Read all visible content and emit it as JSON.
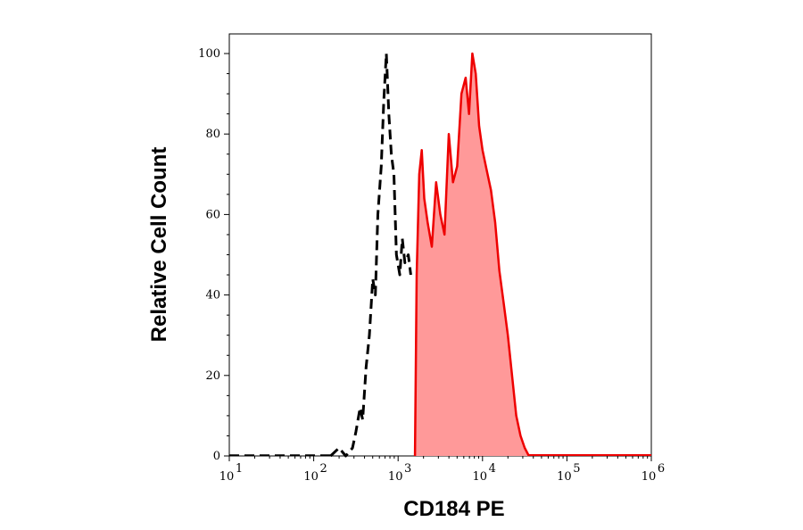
{
  "chart_data": {
    "type": "area",
    "xlabel": "CD184 PE",
    "ylabel": "Relative Cell Count",
    "xscale": "log",
    "xlim": [
      1,
      6
    ],
    "ylim": [
      0,
      100
    ],
    "x_ticks": [
      {
        "exp": 1,
        "base": "10",
        "sup": "1"
      },
      {
        "exp": 2,
        "base": "10",
        "sup": "2"
      },
      {
        "exp": 3,
        "base": "10",
        "sup": "3"
      },
      {
        "exp": 4,
        "base": "10",
        "sup": "4"
      },
      {
        "exp": 5,
        "base": "10",
        "sup": "5"
      },
      {
        "exp": 6,
        "base": "10",
        "sup": "6"
      }
    ],
    "y_ticks": [
      "0",
      "20",
      "40",
      "60",
      "80",
      "100"
    ],
    "grid": false,
    "series": [
      {
        "style": "dashed",
        "color": "#000000",
        "fill": "none",
        "points": [
          [
            2.2,
            0
          ],
          [
            2.3,
            2
          ],
          [
            2.38,
            0
          ],
          [
            2.46,
            2
          ],
          [
            2.5,
            6
          ],
          [
            2.55,
            12
          ],
          [
            2.58,
            9
          ],
          [
            2.62,
            22
          ],
          [
            2.66,
            30
          ],
          [
            2.7,
            44
          ],
          [
            2.73,
            40
          ],
          [
            2.76,
            60
          ],
          [
            2.8,
            72
          ],
          [
            2.83,
            88
          ],
          [
            2.86,
            100
          ],
          [
            2.89,
            85
          ],
          [
            2.92,
            75
          ],
          [
            2.95,
            70
          ],
          [
            2.98,
            50
          ],
          [
            3.02,
            45
          ],
          [
            3.05,
            54
          ],
          [
            3.08,
            48
          ],
          [
            3.12,
            50
          ],
          [
            3.15,
            45
          ]
        ]
      },
      {
        "style": "solid",
        "color": "#ee0000",
        "fill": "#ff9999",
        "points": [
          [
            3.2,
            0
          ],
          [
            3.22,
            45
          ],
          [
            3.25,
            70
          ],
          [
            3.28,
            76
          ],
          [
            3.31,
            64
          ],
          [
            3.35,
            58
          ],
          [
            3.4,
            52
          ],
          [
            3.45,
            68
          ],
          [
            3.5,
            60
          ],
          [
            3.55,
            55
          ],
          [
            3.6,
            80
          ],
          [
            3.65,
            68
          ],
          [
            3.7,
            72
          ],
          [
            3.75,
            90
          ],
          [
            3.8,
            94
          ],
          [
            3.84,
            85
          ],
          [
            3.88,
            100
          ],
          [
            3.92,
            95
          ],
          [
            3.96,
            82
          ],
          [
            4.0,
            76
          ],
          [
            4.05,
            71
          ],
          [
            4.1,
            66
          ],
          [
            4.15,
            58
          ],
          [
            4.2,
            46
          ],
          [
            4.25,
            38
          ],
          [
            4.3,
            30
          ],
          [
            4.35,
            20
          ],
          [
            4.4,
            10
          ],
          [
            4.45,
            5
          ],
          [
            4.5,
            2
          ],
          [
            4.55,
            0
          ]
        ]
      }
    ]
  }
}
